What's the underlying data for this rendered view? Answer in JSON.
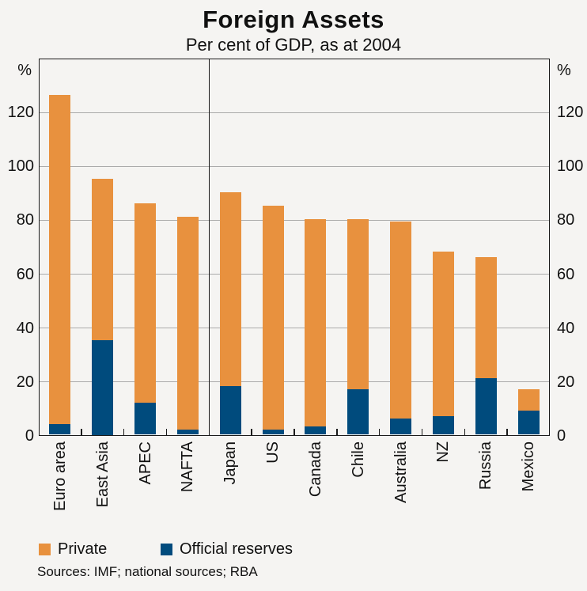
{
  "chart_data": {
    "type": "bar",
    "stacked": true,
    "title": "Foreign Assets",
    "subtitle": "Per cent of GDP, as at 2004",
    "unit": "%",
    "categories": [
      "Euro area",
      "East Asia",
      "APEC",
      "NAFTA",
      "Japan",
      "US",
      "Canada",
      "Chile",
      "Australia",
      "NZ",
      "Russia",
      "Mexico"
    ],
    "series": [
      {
        "name": "Private",
        "color": "#E8913E",
        "values": [
          122,
          60,
          74,
          79,
          72,
          83,
          77,
          63,
          73,
          61,
          45,
          8
        ]
      },
      {
        "name": "Official reserves",
        "color": "#004B7D",
        "values": [
          4,
          35,
          12,
          2,
          18,
          2,
          3,
          17,
          6,
          7,
          21,
          9
        ]
      }
    ],
    "totals": [
      126,
      95,
      86,
      81,
      90,
      85,
      80,
      80,
      79,
      68,
      66,
      17
    ],
    "ylim": [
      0,
      140
    ],
    "yticks": [
      0,
      20,
      40,
      60,
      80,
      100,
      120
    ],
    "grid": true,
    "panel_divider_after_index": 3,
    "legend_position": "bottom-left",
    "source_note": "Sources: IMF; national sources; RBA",
    "colors": {
      "background": "#F5F4F2",
      "frame": "#1A1A1A",
      "grid": "#ABABAB"
    }
  }
}
